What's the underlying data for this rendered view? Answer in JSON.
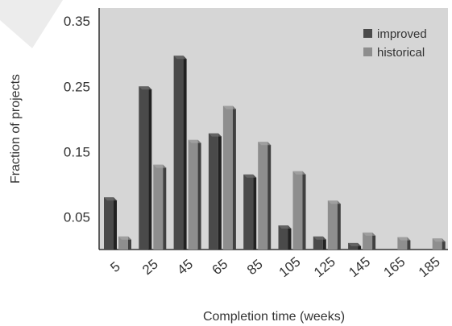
{
  "chart_data": {
    "type": "bar",
    "xlabel": "Completion time (weeks)",
    "ylabel": "Fraction of projects",
    "categories": [
      "5",
      "25",
      "45",
      "65",
      "85",
      "105",
      "125",
      "145",
      "165",
      "185"
    ],
    "yticks": [
      "0.05",
      "0.15",
      "0.25",
      "0.35"
    ],
    "ylim": [
      0,
      0.37
    ],
    "grid": false,
    "legend_position": "top-right",
    "series": [
      {
        "name": "improved",
        "color": "#4a4a4a",
        "values": [
          0.08,
          0.25,
          0.297,
          0.178,
          0.115,
          0.037,
          0.02,
          0.01,
          0.0,
          0.0
        ]
      },
      {
        "name": "historical",
        "color": "#8e8e8e",
        "values": [
          0.02,
          0.13,
          0.168,
          0.22,
          0.165,
          0.12,
          0.075,
          0.026,
          0.019,
          0.017
        ]
      }
    ],
    "plot_background": "#d6d6d6"
  }
}
